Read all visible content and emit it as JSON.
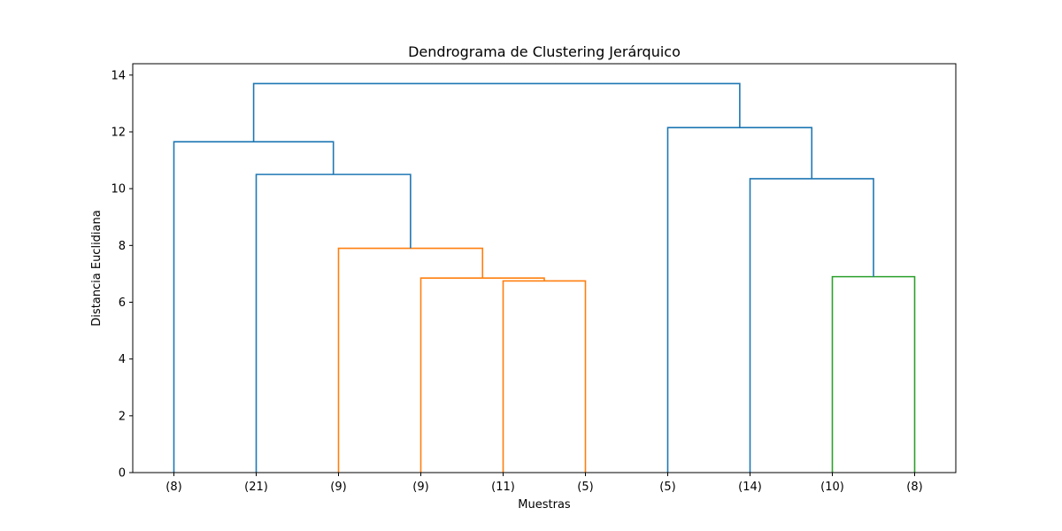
{
  "chart_data": {
    "type": "dendrogram",
    "title": "Dendrograma de Clustering Jerárquico",
    "xlabel": "Muestras",
    "ylabel": "Distancia Euclidiana",
    "ylim": [
      0,
      14.4
    ],
    "yticks": [
      0,
      2,
      4,
      6,
      8,
      10,
      12,
      14
    ],
    "leaves": [
      "(8)",
      "(21)",
      "(9)",
      "(9)",
      "(11)",
      "(5)",
      "(5)",
      "(14)",
      "(10)",
      "(8)"
    ],
    "merges": [
      {
        "name": "merge-11-5",
        "left": 4,
        "right": 5,
        "height": 6.75,
        "color": "#ff7f0e"
      },
      {
        "name": "merge-9-group",
        "left": 3,
        "right": "merge-11-5",
        "height": 6.85,
        "color": "#ff7f0e"
      },
      {
        "name": "merge-orange-top",
        "left": 2,
        "right": "merge-9-group",
        "height": 7.9,
        "color": "#ff7f0e"
      },
      {
        "name": "merge-21-group",
        "left": 1,
        "right": "merge-orange-top",
        "height": 10.5,
        "color": "#1f77b4"
      },
      {
        "name": "merge-left-top",
        "left": 0,
        "right": "merge-21-group",
        "height": 11.65,
        "color": "#1f77b4"
      },
      {
        "name": "merge-10-8",
        "left": 8,
        "right": 9,
        "height": 6.9,
        "color": "#2ca02c"
      },
      {
        "name": "merge-14-group",
        "left": 7,
        "right": "merge-10-8",
        "height": 10.35,
        "color": "#1f77b4"
      },
      {
        "name": "merge-right-top",
        "left": 6,
        "right": "merge-14-group",
        "height": 12.15,
        "color": "#1f77b4"
      },
      {
        "name": "merge-root",
        "left": "merge-left-top",
        "right": "merge-right-top",
        "height": 13.7,
        "color": "#1f77b4"
      }
    ],
    "grid": false
  }
}
